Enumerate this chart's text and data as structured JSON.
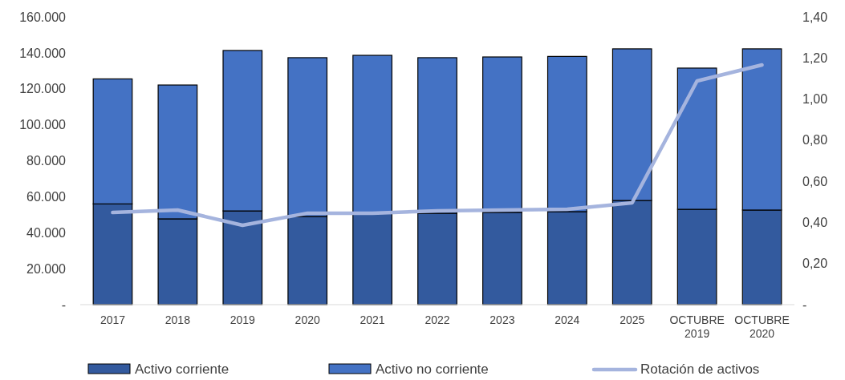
{
  "chart_data": {
    "type": "bar",
    "stacked": true,
    "categories": [
      "2017",
      "2018",
      "2019",
      "2020",
      "2021",
      "2022",
      "2023",
      "2024",
      "2025",
      "OCTUBRE 2019",
      "OCTUBRE 2020"
    ],
    "series": [
      {
        "name": "Activo corriente",
        "color": "#335a9e",
        "values": [
          56000,
          47700,
          52100,
          49000,
          51000,
          50800,
          51300,
          51700,
          57900,
          53000,
          52600
        ]
      },
      {
        "name": "Activo no corriente",
        "color": "#4472c4",
        "values": [
          69500,
          74400,
          89200,
          88300,
          87600,
          86500,
          86400,
          86300,
          84300,
          78500,
          89600
        ]
      },
      {
        "name": "Rotación de activos",
        "type": "line",
        "axis": "y2",
        "color": "#a5b4de",
        "values": [
          0.448,
          0.46,
          0.386,
          0.445,
          0.445,
          0.456,
          0.46,
          0.464,
          0.495,
          1.088,
          1.166
        ]
      }
    ],
    "ylim": [
      0,
      160000
    ],
    "yticks": [
      {
        "value": 0,
        "label": "-"
      },
      {
        "value": 20000,
        "label": "20.000"
      },
      {
        "value": 40000,
        "label": "40.000"
      },
      {
        "value": 60000,
        "label": "60.000"
      },
      {
        "value": 80000,
        "label": "80.000"
      },
      {
        "value": 100000,
        "label": "100.000"
      },
      {
        "value": 120000,
        "label": "120.000"
      },
      {
        "value": 140000,
        "label": "140.000"
      },
      {
        "value": 160000,
        "label": "160.000"
      }
    ],
    "y2lim": [
      0,
      1.4
    ],
    "y2ticks": [
      {
        "value": 0,
        "label": "-"
      },
      {
        "value": 0.2,
        "label": "0,20"
      },
      {
        "value": 0.4,
        "label": "0,40"
      },
      {
        "value": 0.6,
        "label": "0,60"
      },
      {
        "value": 0.8,
        "label": "0,80"
      },
      {
        "value": 1.0,
        "label": "1,00"
      },
      {
        "value": 1.2,
        "label": "1,20"
      },
      {
        "value": 1.4,
        "label": "1,40"
      }
    ],
    "grid": false,
    "legend": "bottom"
  }
}
